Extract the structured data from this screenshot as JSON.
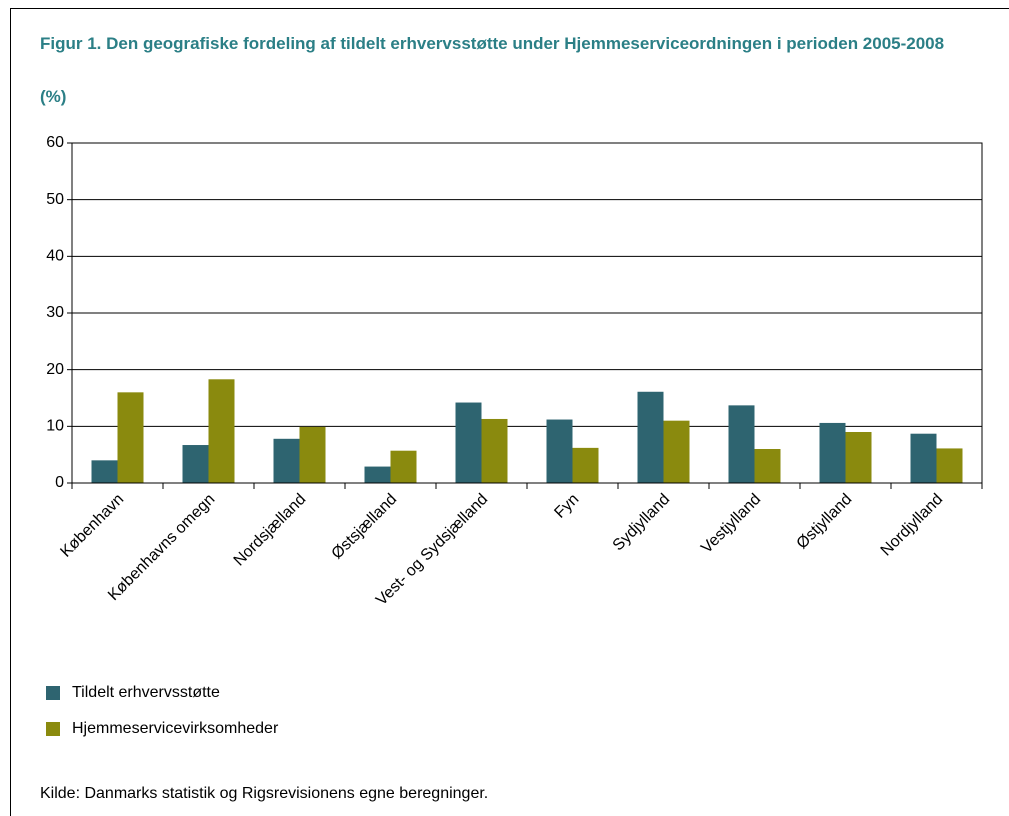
{
  "chart_data": {
    "type": "bar",
    "title": "Figur 1. Den geografiske fordeling af tildelt erhvervsstøtte under Hjemmeserviceordningen i perioden 2005-2008",
    "subtitle": "(%)",
    "categories": [
      "København",
      "Københavns omegn",
      "Nordsjælland",
      "Østsjælland",
      "Vest- og Sydsjælland",
      "Fyn",
      "Sydjylland",
      "Vestjylland",
      "Østjylland",
      "Nordjylland"
    ],
    "series": [
      {
        "name": "Tildelt erhvervsstøtte",
        "color": "#2e6470",
        "values": [
          4,
          6.7,
          7.8,
          2.9,
          14.2,
          11.2,
          16.1,
          13.7,
          10.6,
          8.7
        ]
      },
      {
        "name": "Hjemmeservicevirksomheder",
        "color": "#8a8a0e",
        "values": [
          16,
          18.3,
          9.9,
          5.7,
          11.3,
          6.2,
          11,
          6,
          9,
          6.1
        ]
      }
    ],
    "ylim": [
      0,
      60
    ],
    "yticks": [
      0,
      10,
      20,
      30,
      40,
      50,
      60
    ],
    "grid": true,
    "source": "Kilde:  Danmarks statistik og Rigsrevisionens egne beregninger."
  }
}
